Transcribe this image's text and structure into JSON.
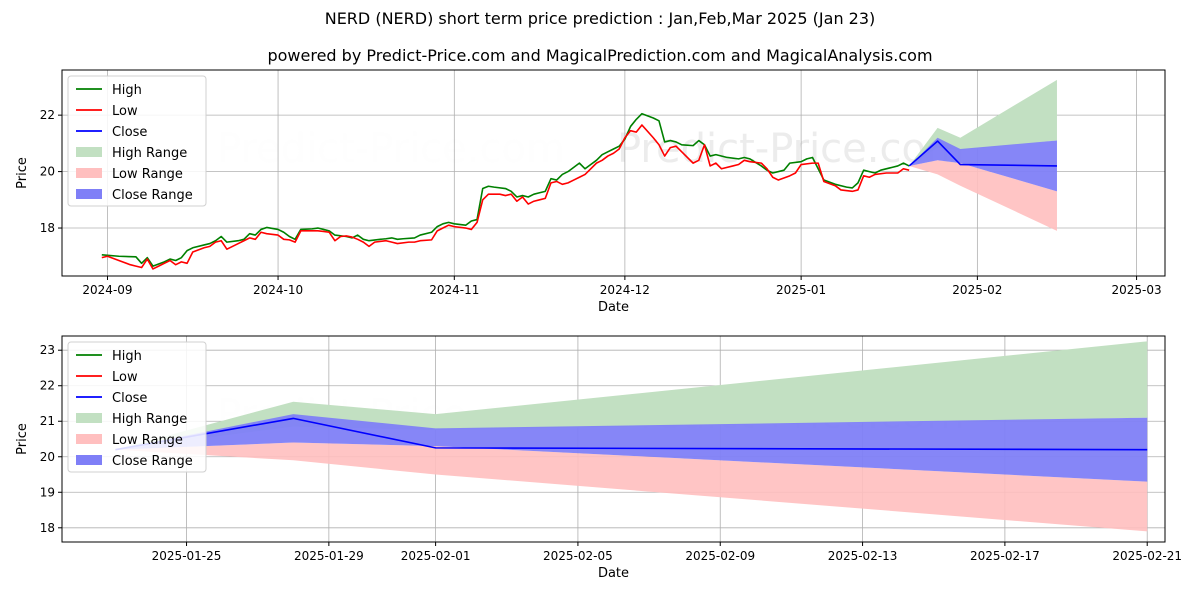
{
  "title": "NERD (NERD) short term price prediction : Jan,Feb,Mar 2025 (Jan 23)",
  "subtitle": "powered by Predict-Price.com and MagicalPrediction.com and MagicalAnalysis.com",
  "watermark": "Predict-Price.com",
  "colors": {
    "high": "#008000",
    "low": "#ff0000",
    "close": "#0000ff",
    "high_range": "#c2e0c2",
    "low_range": "#ffbfbf",
    "close_range": "#7f7ff7"
  },
  "chart_data": [
    {
      "type": "line",
      "id": "top",
      "xlabel": "Date",
      "ylabel": "Price",
      "grid": true,
      "legend": "top-left",
      "xlim": [
        -8,
        186
      ],
      "ylim": [
        16.3,
        23.6
      ],
      "x_ticks": [
        {
          "t": 0,
          "label": "2024-09"
        },
        {
          "t": 30,
          "label": "2024-10"
        },
        {
          "t": 61,
          "label": "2024-11"
        },
        {
          "t": 91,
          "label": "2024-12"
        },
        {
          "t": 122,
          "label": "2025-01"
        },
        {
          "t": 153,
          "label": "2025-02"
        },
        {
          "t": 181,
          "label": "2025-03"
        }
      ],
      "y_ticks": [
        18,
        20,
        22
      ],
      "legend_items": [
        "High",
        "Low",
        "Close",
        "High Range",
        "Low Range",
        "Close Range"
      ],
      "high": [
        [
          -1,
          17.05
        ],
        [
          2,
          17.0
        ],
        [
          5,
          16.98
        ],
        [
          6,
          16.75
        ],
        [
          7,
          16.95
        ],
        [
          8,
          16.65
        ],
        [
          10,
          16.8
        ],
        [
          11,
          16.9
        ],
        [
          12,
          16.85
        ],
        [
          13,
          16.95
        ],
        [
          14,
          17.2
        ],
        [
          15,
          17.3
        ],
        [
          17,
          17.4
        ],
        [
          18,
          17.45
        ],
        [
          19,
          17.55
        ],
        [
          20,
          17.7
        ],
        [
          21,
          17.5
        ],
        [
          23,
          17.55
        ],
        [
          24,
          17.6
        ],
        [
          25,
          17.8
        ],
        [
          26,
          17.75
        ],
        [
          27,
          17.95
        ],
        [
          28,
          18.02
        ],
        [
          30,
          17.95
        ],
        [
          31,
          17.85
        ],
        [
          32,
          17.7
        ],
        [
          33,
          17.6
        ],
        [
          34,
          17.95
        ],
        [
          36,
          17.97
        ],
        [
          37,
          18.0
        ],
        [
          38,
          17.95
        ],
        [
          39,
          17.9
        ],
        [
          40,
          17.75
        ],
        [
          42,
          17.7
        ],
        [
          43,
          17.65
        ],
        [
          44,
          17.75
        ],
        [
          45,
          17.6
        ],
        [
          46,
          17.55
        ],
        [
          48,
          17.6
        ],
        [
          49,
          17.62
        ],
        [
          50,
          17.65
        ],
        [
          51,
          17.6
        ],
        [
          52,
          17.62
        ],
        [
          54,
          17.65
        ],
        [
          55,
          17.75
        ],
        [
          57,
          17.85
        ],
        [
          58,
          18.05
        ],
        [
          59,
          18.15
        ],
        [
          60,
          18.2
        ],
        [
          61,
          18.15
        ],
        [
          63,
          18.1
        ],
        [
          64,
          18.25
        ],
        [
          65,
          18.3
        ],
        [
          66,
          19.4
        ],
        [
          67,
          19.48
        ],
        [
          68,
          19.45
        ],
        [
          70,
          19.4
        ],
        [
          71,
          19.3
        ],
        [
          72,
          19.1
        ],
        [
          73,
          19.15
        ],
        [
          74,
          19.1
        ],
        [
          75,
          19.2
        ],
        [
          76,
          19.25
        ],
        [
          77,
          19.3
        ],
        [
          78,
          19.75
        ],
        [
          79,
          19.7
        ],
        [
          80,
          19.9
        ],
        [
          81,
          20.0
        ],
        [
          82,
          20.15
        ],
        [
          83,
          20.3
        ],
        [
          84,
          20.1
        ],
        [
          85,
          20.25
        ],
        [
          86,
          20.4
        ],
        [
          87,
          20.6
        ],
        [
          88,
          20.7
        ],
        [
          89,
          20.8
        ],
        [
          90,
          20.9
        ],
        [
          91,
          21.15
        ],
        [
          92,
          21.6
        ],
        [
          93,
          21.85
        ],
        [
          94,
          22.05
        ],
        [
          96,
          21.9
        ],
        [
          97,
          21.8
        ],
        [
          98,
          21.05
        ],
        [
          99,
          21.1
        ],
        [
          100,
          21.05
        ],
        [
          101,
          20.95
        ],
        [
          103,
          20.92
        ],
        [
          104,
          21.1
        ],
        [
          105,
          20.95
        ],
        [
          106,
          20.55
        ],
        [
          107,
          20.6
        ],
        [
          109,
          20.5
        ],
        [
          111,
          20.45
        ],
        [
          112,
          20.5
        ],
        [
          113,
          20.45
        ],
        [
          115,
          20.2
        ],
        [
          116,
          20.05
        ],
        [
          117,
          19.95
        ],
        [
          119,
          20.05
        ],
        [
          120,
          20.3
        ],
        [
          122,
          20.35
        ],
        [
          123,
          20.45
        ],
        [
          124,
          20.5
        ],
        [
          125,
          20.1
        ],
        [
          126,
          19.7
        ],
        [
          128,
          19.55
        ],
        [
          130,
          19.45
        ],
        [
          131,
          19.42
        ],
        [
          132,
          19.6
        ],
        [
          133,
          20.05
        ],
        [
          134,
          20.0
        ],
        [
          135,
          19.95
        ],
        [
          136,
          20.05
        ],
        [
          138,
          20.15
        ],
        [
          139,
          20.2
        ],
        [
          140,
          20.3
        ],
        [
          141,
          20.2
        ]
      ],
      "low": [
        [
          -1,
          16.95
        ],
        [
          0,
          17.0
        ],
        [
          2,
          16.85
        ],
        [
          4,
          16.7
        ],
        [
          5,
          16.65
        ],
        [
          6,
          16.6
        ],
        [
          7,
          16.9
        ],
        [
          8,
          16.55
        ],
        [
          9,
          16.65
        ],
        [
          10,
          16.75
        ],
        [
          11,
          16.85
        ],
        [
          12,
          16.7
        ],
        [
          13,
          16.8
        ],
        [
          14,
          16.75
        ],
        [
          15,
          17.15
        ],
        [
          17,
          17.3
        ],
        [
          18,
          17.35
        ],
        [
          19,
          17.5
        ],
        [
          20,
          17.55
        ],
        [
          21,
          17.25
        ],
        [
          23,
          17.45
        ],
        [
          24,
          17.55
        ],
        [
          25,
          17.65
        ],
        [
          26,
          17.6
        ],
        [
          27,
          17.85
        ],
        [
          28,
          17.8
        ],
        [
          30,
          17.75
        ],
        [
          31,
          17.6
        ],
        [
          32,
          17.58
        ],
        [
          33,
          17.5
        ],
        [
          34,
          17.9
        ],
        [
          36,
          17.9
        ],
        [
          37,
          17.9
        ],
        [
          38,
          17.88
        ],
        [
          39,
          17.85
        ],
        [
          40,
          17.55
        ],
        [
          41,
          17.7
        ],
        [
          42,
          17.72
        ],
        [
          43,
          17.68
        ],
        [
          44,
          17.6
        ],
        [
          45,
          17.5
        ],
        [
          46,
          17.35
        ],
        [
          47,
          17.5
        ],
        [
          49,
          17.55
        ],
        [
          50,
          17.5
        ],
        [
          51,
          17.45
        ],
        [
          53,
          17.5
        ],
        [
          54,
          17.5
        ],
        [
          55,
          17.55
        ],
        [
          57,
          17.58
        ],
        [
          58,
          17.9
        ],
        [
          59,
          18.0
        ],
        [
          60,
          18.1
        ],
        [
          61,
          18.05
        ],
        [
          63,
          18.0
        ],
        [
          64,
          17.95
        ],
        [
          65,
          18.2
        ],
        [
          66,
          19.0
        ],
        [
          67,
          19.2
        ],
        [
          69,
          19.2
        ],
        [
          70,
          19.15
        ],
        [
          71,
          19.2
        ],
        [
          72,
          18.95
        ],
        [
          73,
          19.1
        ],
        [
          74,
          18.85
        ],
        [
          75,
          18.95
        ],
        [
          76,
          19.0
        ],
        [
          77,
          19.05
        ],
        [
          78,
          19.6
        ],
        [
          79,
          19.65
        ],
        [
          80,
          19.55
        ],
        [
          81,
          19.6
        ],
        [
          82,
          19.7
        ],
        [
          83,
          19.8
        ],
        [
          84,
          19.9
        ],
        [
          85,
          20.1
        ],
        [
          86,
          20.3
        ],
        [
          87,
          20.4
        ],
        [
          88,
          20.55
        ],
        [
          89,
          20.65
        ],
        [
          90,
          20.8
        ],
        [
          91,
          21.2
        ],
        [
          92,
          21.45
        ],
        [
          93,
          21.4
        ],
        [
          94,
          21.65
        ],
        [
          96,
          21.2
        ],
        [
          97,
          20.95
        ],
        [
          98,
          20.55
        ],
        [
          99,
          20.85
        ],
        [
          100,
          20.9
        ],
        [
          101,
          20.7
        ],
        [
          103,
          20.3
        ],
        [
          104,
          20.4
        ],
        [
          105,
          20.95
        ],
        [
          106,
          20.2
        ],
        [
          107,
          20.3
        ],
        [
          108,
          20.1
        ],
        [
          110,
          20.2
        ],
        [
          111,
          20.25
        ],
        [
          112,
          20.4
        ],
        [
          113,
          20.35
        ],
        [
          115,
          20.3
        ],
        [
          116,
          20.1
        ],
        [
          117,
          19.8
        ],
        [
          118,
          19.7
        ],
        [
          120,
          19.85
        ],
        [
          121,
          19.95
        ],
        [
          122,
          20.25
        ],
        [
          124,
          20.3
        ],
        [
          125,
          20.3
        ],
        [
          126,
          19.65
        ],
        [
          128,
          19.5
        ],
        [
          129,
          19.35
        ],
        [
          131,
          19.3
        ],
        [
          132,
          19.35
        ],
        [
          133,
          19.85
        ],
        [
          134,
          19.8
        ],
        [
          135,
          19.9
        ],
        [
          137,
          19.95
        ],
        [
          139,
          19.95
        ],
        [
          140,
          20.1
        ],
        [
          141,
          20.05
        ]
      ],
      "close": [
        [
          141,
          20.2
        ],
        [
          146,
          21.08
        ],
        [
          150,
          20.25
        ],
        [
          167,
          20.2
        ]
      ],
      "high_range": {
        "x": [
          141,
          146,
          150,
          167
        ],
        "upper": [
          20.2,
          21.55,
          21.2,
          23.25
        ],
        "lower": [
          20.2,
          20.85,
          20.75,
          21.1
        ]
      },
      "low_range": {
        "x": [
          141,
          146,
          150,
          167
        ],
        "upper": [
          20.2,
          20.4,
          20.3,
          19.3
        ],
        "lower": [
          20.2,
          19.9,
          19.5,
          17.9
        ]
      },
      "close_range": {
        "x": [
          141,
          146,
          150,
          167
        ],
        "upper": [
          20.2,
          21.2,
          20.8,
          21.1
        ],
        "lower": [
          20.2,
          20.4,
          20.3,
          19.3
        ]
      }
    },
    {
      "type": "line",
      "id": "bottom",
      "xlabel": "Date",
      "ylabel": "Price",
      "grid": true,
      "legend": "top-left",
      "xlim": [
        -1.5,
        29.5
      ],
      "ylim": [
        17.6,
        23.4
      ],
      "x_ticks": [
        {
          "t": 2,
          "label": "2025-01-25"
        },
        {
          "t": 6,
          "label": "2025-01-29"
        },
        {
          "t": 9,
          "label": "2025-02-01"
        },
        {
          "t": 13,
          "label": "2025-02-05"
        },
        {
          "t": 17,
          "label": "2025-02-09"
        },
        {
          "t": 21,
          "label": "2025-02-13"
        },
        {
          "t": 25,
          "label": "2025-02-17"
        },
        {
          "t": 29,
          "label": "2025-02-21"
        }
      ],
      "y_ticks": [
        18,
        19,
        20,
        21,
        22,
        23
      ],
      "legend_items": [
        "High",
        "Low",
        "Close",
        "High Range",
        "Low Range",
        "Close Range"
      ],
      "high": [],
      "low": [],
      "close": [
        [
          0,
          20.2
        ],
        [
          5,
          21.08
        ],
        [
          9,
          20.25
        ],
        [
          29,
          20.2
        ]
      ],
      "high_range": {
        "x": [
          0,
          5,
          9,
          29
        ],
        "upper": [
          20.2,
          21.55,
          21.2,
          23.25
        ],
        "lower": [
          20.2,
          20.85,
          20.75,
          21.1
        ]
      },
      "low_range": {
        "x": [
          0,
          5,
          9,
          29
        ],
        "upper": [
          20.2,
          20.4,
          20.3,
          19.3
        ],
        "lower": [
          20.2,
          19.9,
          19.5,
          17.9
        ]
      },
      "close_range": {
        "x": [
          0,
          5,
          9,
          29
        ],
        "upper": [
          20.2,
          21.2,
          20.8,
          21.1
        ],
        "lower": [
          20.2,
          20.4,
          20.3,
          19.3
        ]
      }
    }
  ]
}
